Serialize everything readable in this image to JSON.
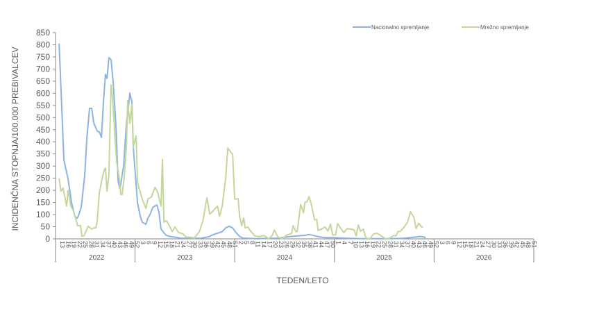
{
  "chart_data": {
    "type": "line",
    "title": "",
    "xlabel": "TEDEN/LETO",
    "ylabel": "INCIDENČNA  STOPNJA/100.000  PREBIVALCEV",
    "ylim": [
      0,
      850
    ],
    "y_ticks": [
      0,
      50,
      100,
      150,
      200,
      250,
      300,
      350,
      400,
      450,
      500,
      550,
      600,
      650,
      700,
      750,
      800,
      850
    ],
    "x_unit": "weeks since 2022 week 13",
    "xlim": [
      0,
      248
    ],
    "grid": false,
    "legend_position": "top-right",
    "years": [
      {
        "label": "2022",
        "start": 0,
        "end": 40,
        "first_week": 13,
        "weeks": [
          "13",
          "16",
          "19",
          "22",
          "25",
          "28",
          "31",
          "34",
          "37",
          "40",
          "43",
          "46",
          "49",
          "52"
        ]
      },
      {
        "label": "2023",
        "start": 40,
        "end": 92,
        "first_week": 1,
        "weeks": [
          "3",
          "6",
          "9",
          "12",
          "15",
          "18",
          "21",
          "24",
          "27",
          "30",
          "33",
          "36",
          "39",
          "42",
          "45",
          "48",
          "51"
        ]
      },
      {
        "label": "2024",
        "start": 92,
        "end": 144,
        "first_week": 1,
        "weeks": [
          "2",
          "5",
          "8",
          "11",
          "14",
          "17",
          "20",
          "23",
          "26",
          "29",
          "32",
          "35",
          "38",
          "41",
          "44",
          "47",
          "50"
        ]
      },
      {
        "label": "2025",
        "start": 144,
        "end": 196,
        "first_week": 1,
        "weeks": [
          "1",
          "4",
          "7",
          "10",
          "13",
          "16",
          "19",
          "22",
          "25",
          "28",
          "31",
          "34",
          "37",
          "40",
          "43",
          "46",
          "49",
          "52"
        ]
      },
      {
        "label": "2026",
        "start": 196,
        "end": 248,
        "first_week": 1,
        "weeks": [
          "3",
          "6",
          "9",
          "12",
          "15",
          "18",
          "21",
          "24",
          "27",
          "30",
          "33",
          "36",
          "39",
          "42",
          "45",
          "48",
          "51"
        ]
      }
    ],
    "series": [
      {
        "name": "Nacionalno spremljanje",
        "color": "#8db3e2",
        "points": [
          [
            0.4,
            805
          ],
          [
            1.4,
            618
          ],
          [
            2.9,
            326
          ],
          [
            5.1,
            246
          ],
          [
            6.9,
            149
          ],
          [
            8.7,
            92
          ],
          [
            9.8,
            85
          ],
          [
            10.5,
            95
          ],
          [
            12.0,
            132
          ],
          [
            13.8,
            263
          ],
          [
            14.9,
            418
          ],
          [
            16.3,
            538
          ],
          [
            17.4,
            538
          ],
          [
            18.5,
            478
          ],
          [
            20.3,
            444
          ],
          [
            21.4,
            441
          ],
          [
            22.5,
            418
          ],
          [
            23.6,
            570
          ],
          [
            24.6,
            678
          ],
          [
            25.4,
            661
          ],
          [
            26.4,
            747
          ],
          [
            27.5,
            738
          ],
          [
            28.6,
            647
          ],
          [
            30.1,
            464
          ],
          [
            31.2,
            235
          ],
          [
            32.2,
            206
          ],
          [
            34.1,
            303
          ],
          [
            35.5,
            475
          ],
          [
            37.0,
            575
          ],
          [
            37.3,
            601
          ],
          [
            38.4,
            564
          ],
          [
            39.1,
            378
          ],
          [
            41.3,
            149
          ],
          [
            42.8,
            92
          ],
          [
            43.8,
            69
          ],
          [
            44.6,
            65
          ],
          [
            45.7,
            60
          ],
          [
            46.7,
            85
          ],
          [
            47.8,
            100
          ],
          [
            49.3,
            130
          ],
          [
            50.4,
            135
          ],
          [
            51.4,
            140
          ],
          [
            52.5,
            110
          ],
          [
            53.6,
            40
          ],
          [
            55.1,
            25
          ],
          [
            56.2,
            15
          ],
          [
            58.3,
            10
          ],
          [
            63.8,
            3
          ],
          [
            71.0,
            2
          ],
          [
            74.6,
            3
          ],
          [
            78.3,
            8
          ],
          [
            80.1,
            15
          ],
          [
            81.9,
            20
          ],
          [
            83.7,
            25
          ],
          [
            85.5,
            30
          ],
          [
            87.3,
            45
          ],
          [
            89.1,
            52
          ],
          [
            90.9,
            45
          ],
          [
            92.8,
            25
          ],
          [
            94.6,
            10
          ],
          [
            96.4,
            3
          ],
          [
            103.6,
            1
          ],
          [
            114.5,
            3
          ],
          [
            121.7,
            10
          ],
          [
            129.0,
            15
          ],
          [
            130.8,
            18
          ],
          [
            132.6,
            15
          ],
          [
            136.2,
            8
          ],
          [
            139.9,
            5
          ],
          [
            143.5,
            5
          ],
          [
            148.9,
            3
          ],
          [
            158.0,
            1
          ],
          [
            172.5,
            1
          ],
          [
            179.7,
            2
          ],
          [
            187.0,
            8
          ],
          [
            188.8,
            10
          ],
          [
            190.6,
            8
          ],
          [
            191.7,
            4
          ]
        ]
      },
      {
        "name": "Mrežno spremljanje",
        "color": "#c3d69b",
        "points": [
          [
            0.4,
            249
          ],
          [
            1.4,
            197
          ],
          [
            2.5,
            209
          ],
          [
            4.3,
            135
          ],
          [
            5.1,
            200
          ],
          [
            6.5,
            135
          ],
          [
            7.6,
            120
          ],
          [
            9.1,
            83
          ],
          [
            10.1,
            54
          ],
          [
            11.6,
            55
          ],
          [
            12.3,
            11
          ],
          [
            13.4,
            13
          ],
          [
            15.6,
            52
          ],
          [
            17.4,
            40
          ],
          [
            18.5,
            45
          ],
          [
            19.6,
            45
          ],
          [
            20.3,
            74
          ],
          [
            21.4,
            190
          ],
          [
            22.8,
            246
          ],
          [
            23.9,
            283
          ],
          [
            24.6,
            292
          ],
          [
            25.4,
            197
          ],
          [
            26.4,
            263
          ],
          [
            27.5,
            635
          ],
          [
            28.3,
            578
          ],
          [
            29.3,
            455
          ],
          [
            30.4,
            320
          ],
          [
            31.9,
            246
          ],
          [
            32.6,
            183
          ],
          [
            33.3,
            183
          ],
          [
            34.4,
            255
          ],
          [
            35.5,
            378
          ],
          [
            36.2,
            570
          ],
          [
            37.3,
            475
          ],
          [
            38.4,
            555
          ],
          [
            39.1,
            378
          ],
          [
            40.6,
            424
          ],
          [
            41.3,
            235
          ],
          [
            42.0,
            212
          ],
          [
            43.8,
            164
          ],
          [
            45.7,
            126
          ],
          [
            46.7,
            164
          ],
          [
            48.6,
            173
          ],
          [
            50.4,
            212
          ],
          [
            51.8,
            193
          ],
          [
            53.6,
            135
          ],
          [
            54.3,
            327
          ],
          [
            55.1,
            69
          ],
          [
            56.5,
            74
          ],
          [
            58.3,
            49
          ],
          [
            59.4,
            30
          ],
          [
            60.9,
            49
          ],
          [
            62.7,
            26
          ],
          [
            64.9,
            21
          ],
          [
            66.7,
            7
          ],
          [
            68.5,
            7
          ],
          [
            71.0,
            4
          ],
          [
            73.6,
            30
          ],
          [
            75.4,
            74
          ],
          [
            77.5,
            169
          ],
          [
            79.0,
            102
          ],
          [
            80.8,
            116
          ],
          [
            81.9,
            126
          ],
          [
            83.0,
            135
          ],
          [
            84.1,
            93
          ],
          [
            85.5,
            135
          ],
          [
            87.3,
            250
          ],
          [
            88.4,
            374
          ],
          [
            90.2,
            355
          ],
          [
            90.9,
            350
          ],
          [
            92.0,
            164
          ],
          [
            93.8,
            165
          ],
          [
            94.6,
            92
          ],
          [
            95.7,
            54
          ],
          [
            96.7,
            86
          ],
          [
            97.5,
            45
          ],
          [
            98.9,
            49
          ],
          [
            100.0,
            35
          ],
          [
            102.5,
            12
          ],
          [
            104.7,
            9
          ],
          [
            107.2,
            14
          ],
          [
            109.8,
            0
          ],
          [
            111.6,
            14
          ],
          [
            112.7,
            37
          ],
          [
            114.5,
            7
          ],
          [
            117.0,
            0
          ],
          [
            118.8,
            14
          ],
          [
            121.7,
            23
          ],
          [
            122.5,
            54
          ],
          [
            123.9,
            30
          ],
          [
            124.6,
            30
          ],
          [
            126.4,
            142
          ],
          [
            127.9,
            107
          ],
          [
            128.6,
            150
          ],
          [
            129.7,
            153
          ],
          [
            130.8,
            174
          ],
          [
            131.9,
            145
          ],
          [
            133.7,
            78
          ],
          [
            134.8,
            80
          ],
          [
            135.5,
            35
          ],
          [
            137.3,
            40
          ],
          [
            139.1,
            49
          ],
          [
            140.6,
            32
          ],
          [
            142.0,
            61
          ],
          [
            143.1,
            16
          ],
          [
            144.6,
            16
          ],
          [
            145.7,
            63
          ],
          [
            147.1,
            45
          ],
          [
            148.9,
            26
          ],
          [
            150.7,
            42
          ],
          [
            152.5,
            40
          ],
          [
            154.3,
            37
          ],
          [
            155.4,
            12
          ],
          [
            156.5,
            57
          ],
          [
            157.6,
            32
          ],
          [
            159.1,
            40
          ],
          [
            160.1,
            12
          ],
          [
            160.9,
            0
          ],
          [
            162.7,
            2
          ],
          [
            164.5,
            21
          ],
          [
            166.3,
            23
          ],
          [
            168.1,
            14
          ],
          [
            170.7,
            0
          ],
          [
            173.2,
            4
          ],
          [
            175.0,
            14
          ],
          [
            176.1,
            12
          ],
          [
            177.2,
            30
          ],
          [
            178.6,
            32
          ],
          [
            180.4,
            49
          ],
          [
            182.2,
            69
          ],
          [
            183.7,
            112
          ],
          [
            185.5,
            88
          ],
          [
            186.6,
            43
          ],
          [
            188.0,
            64
          ],
          [
            189.5,
            49
          ],
          [
            190.2,
            49
          ]
        ]
      }
    ]
  }
}
